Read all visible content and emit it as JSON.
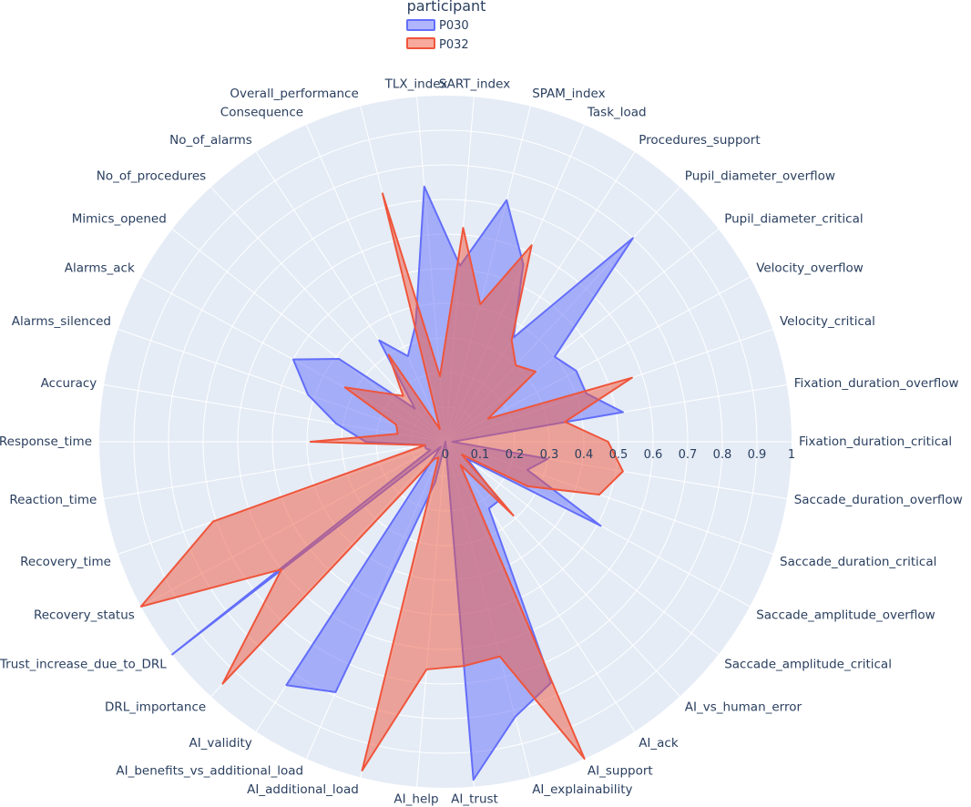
{
  "chart_data": {
    "type": "radar",
    "legend": {
      "title": "participant",
      "position": "top-center"
    },
    "radial_axis": {
      "range": [
        0,
        1
      ],
      "ticks": [
        0,
        0.1,
        0.2,
        0.3,
        0.4,
        0.5,
        0.6,
        0.7,
        0.8,
        0.9,
        1
      ],
      "tick_labels": [
        "0",
        "0.1",
        "0.2",
        "0.3",
        "0.4",
        "0.5",
        "0.6",
        "0.7",
        "0.8",
        "0.9",
        "1"
      ]
    },
    "grid": true,
    "categories": [
      "Fixation_duration_critical",
      "Fixation_duration_overflow",
      "Velocity_critical",
      "Velocity_overflow",
      "Pupil_diameter_critical",
      "Pupil_diameter_overflow",
      "Procedures_support",
      "Task_load",
      "SPAM_index",
      "SART_index",
      "TLX_index",
      "Overall_performance",
      "Consequence",
      "No_of_alarms",
      "No_of_procedures",
      "Mimics_opened",
      "Alarms_ack",
      "Alarms_silenced",
      "Accuracy",
      "Response_time",
      "Reaction_time",
      "Recovery_time",
      "Recovery_status",
      "Trust_increase_due_to_DRL",
      "DRL_importance",
      "AI_validity",
      "AI_benefits_vs_additional_load",
      "AI_additional_load",
      "AI_help",
      "AI_trust",
      "AI_explainability",
      "AI_support",
      "AI_ack",
      "AI_vs_human_error",
      "Saccade_amplitude_critical",
      "Saccade_amplitude_overflow",
      "Saccade_duration_critical",
      "Saccade_duration_overflow"
    ],
    "series": [
      {
        "name": "P030",
        "color": "#636efa",
        "values": [
          0.02,
          0.52,
          0.43,
          0.43,
          0.4,
          0.8,
          0.36,
          0.56,
          0.72,
          0.51,
          0.74,
          0.35,
          0.27,
          0.35,
          0.13,
          0.39,
          0.5,
          0.42,
          0.32,
          0.23,
          0.06,
          0.06,
          0.05,
          1.0,
          0.02,
          0.84,
          0.79,
          0.12,
          0.0,
          0.98,
          0.82,
          0.76,
          0.23,
          0.23,
          0.08,
          0.51,
          0.25,
          0.3
        ]
      },
      {
        "name": "P032",
        "color": "#ef553b",
        "values": [
          0.47,
          0.35,
          0.57,
          0.14,
          0.33,
          0.3,
          0.35,
          0.62,
          0.41,
          0.62,
          0.19,
          0.74,
          0.04,
          0.3,
          0.18,
          0.23,
          0.33,
          0.15,
          0.14,
          0.39,
          0.06,
          0.71,
          1.0,
          0.6,
          0.95,
          0.06,
          0.05,
          0.98,
          0.66,
          0.65,
          0.64,
          1.0,
          0.08,
          0.29,
          0.06,
          0.27,
          0.47,
          0.52
        ]
      }
    ]
  }
}
